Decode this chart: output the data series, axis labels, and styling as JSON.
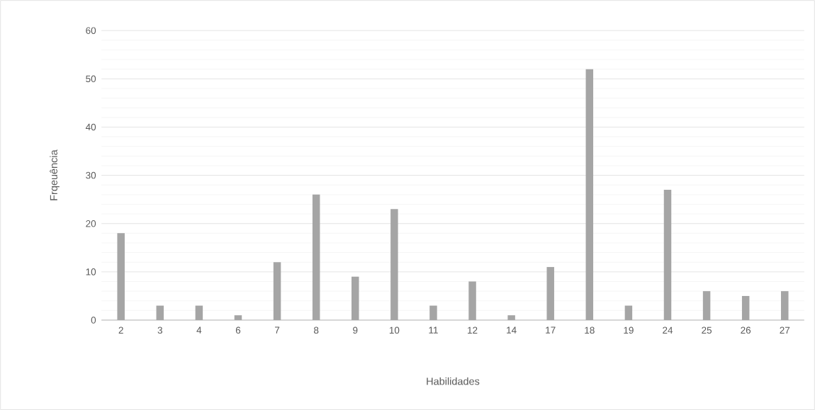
{
  "chart_data": {
    "type": "bar",
    "xlabel": "Habilidades",
    "ylabel": "Frqeuência",
    "categories": [
      "2",
      "3",
      "4",
      "6",
      "7",
      "8",
      "9",
      "10",
      "11",
      "12",
      "14",
      "17",
      "18",
      "19",
      "24",
      "25",
      "26",
      "27"
    ],
    "values": [
      18,
      3,
      3,
      1,
      12,
      26,
      9,
      23,
      3,
      8,
      1,
      11,
      52,
      3,
      27,
      6,
      5,
      6
    ],
    "color": "#a5a5a5",
    "ylim": [
      0,
      60
    ],
    "yticks": [
      0,
      10,
      20,
      30,
      40,
      50,
      60
    ],
    "grid": "y"
  }
}
